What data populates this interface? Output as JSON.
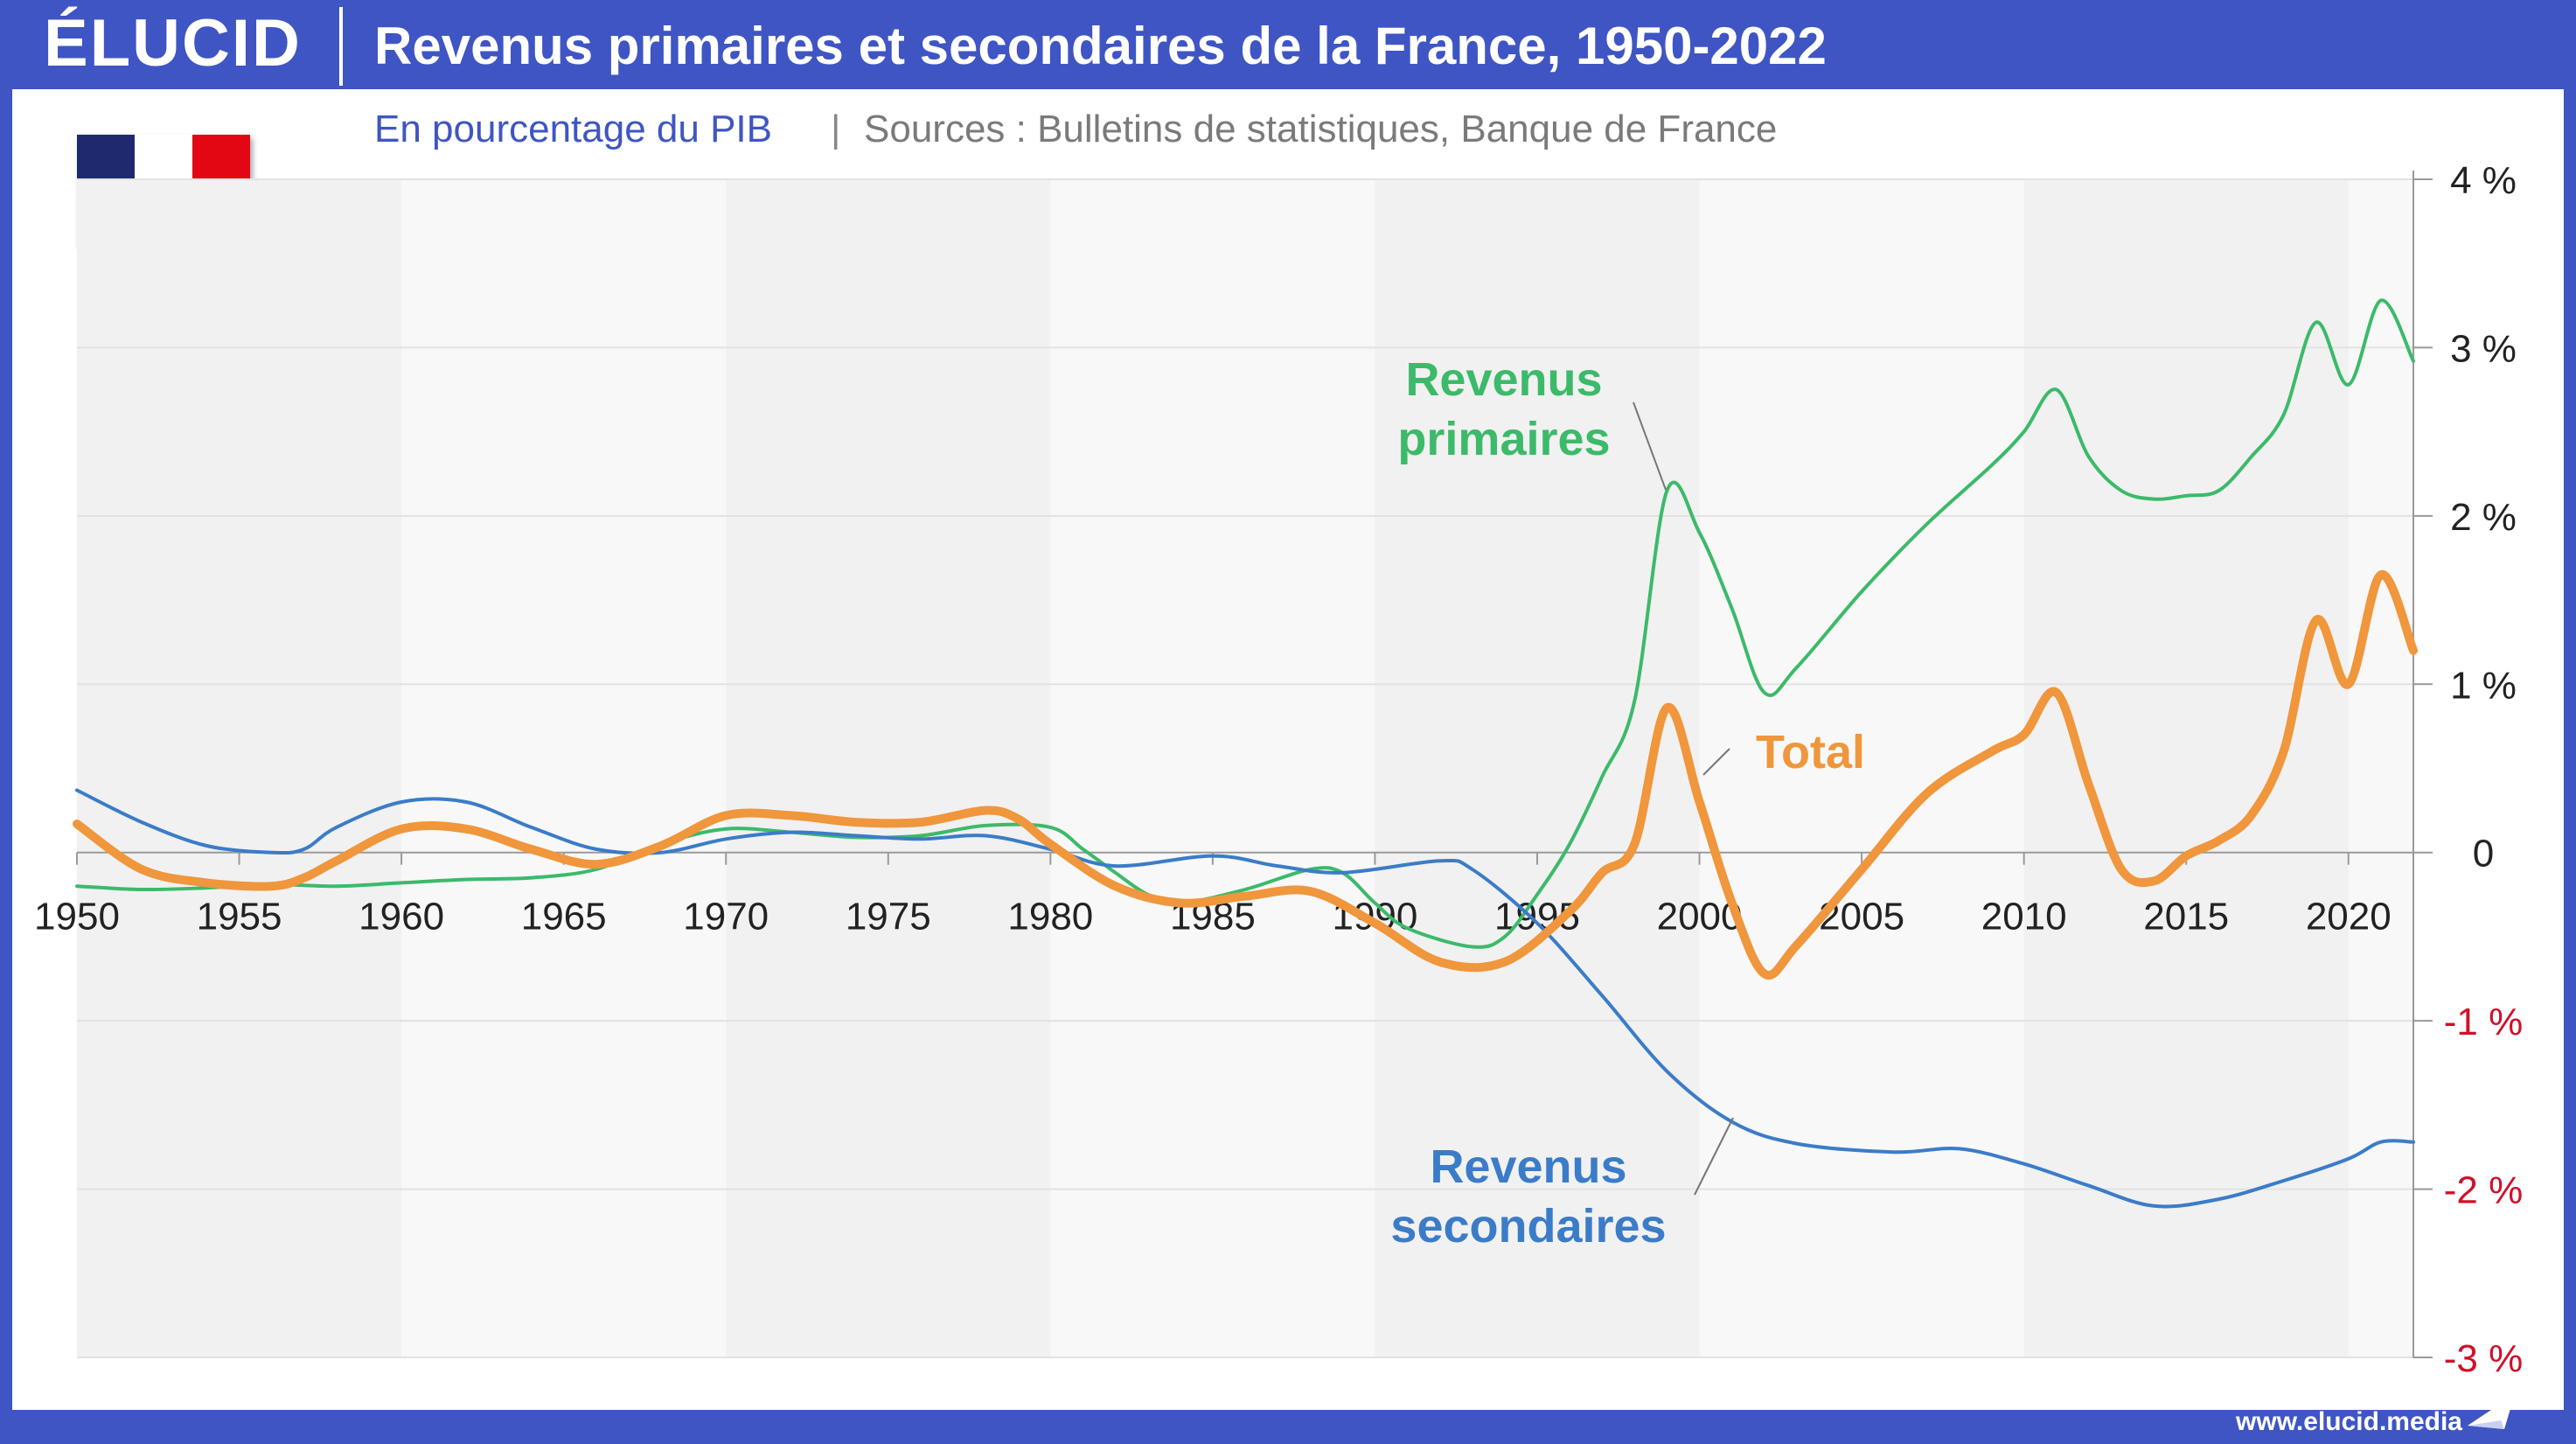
{
  "brand": {
    "logo": "ÉLUCID",
    "url": "www.elucid.media"
  },
  "colors": {
    "frame": "#3f55c4",
    "primary": "#3cba6a",
    "secondary": "#3b7cc8",
    "total": "#f0963c",
    "negative": "#d0102a"
  },
  "flag": {
    "colors": [
      "#1f2a6e",
      "#ffffff",
      "#e30613"
    ]
  },
  "chart_data": {
    "type": "line",
    "title": "Revenus primaires et secondaires de la France, 1950-2022",
    "subtitle": "En pourcentage du PIB",
    "sources_sep": "|",
    "sources": "Sources : Bulletins de statistiques, Banque de France",
    "xlabel": "",
    "ylabel": "",
    "xlim": [
      1950,
      2022
    ],
    "ylim": [
      -3,
      4
    ],
    "x_ticks": [
      1950,
      1955,
      1960,
      1965,
      1970,
      1975,
      1980,
      1985,
      1990,
      1995,
      2000,
      2005,
      2010,
      2015,
      2020
    ],
    "y_ticks": [
      {
        "value": 4,
        "label": "4 %"
      },
      {
        "value": 3,
        "label": "3 %"
      },
      {
        "value": 2,
        "label": "2 %"
      },
      {
        "value": 1,
        "label": "1 %"
      },
      {
        "value": 0,
        "label": "0"
      },
      {
        "value": -1,
        "label": "-1 %"
      },
      {
        "value": -2,
        "label": "-2 %"
      },
      {
        "value": -3,
        "label": "-3 %"
      }
    ],
    "y_axis_position": "right",
    "grid": true,
    "series": [
      {
        "name": "Revenus primaires",
        "label_lines": [
          "Revenus",
          "primaires"
        ],
        "color": "#3cba6a",
        "points": [
          [
            1950,
            -0.2
          ],
          [
            1952,
            -0.22
          ],
          [
            1954,
            -0.21
          ],
          [
            1956,
            -0.19
          ],
          [
            1958,
            -0.2
          ],
          [
            1960,
            -0.18
          ],
          [
            1962,
            -0.16
          ],
          [
            1964,
            -0.15
          ],
          [
            1966,
            -0.1
          ],
          [
            1968,
            0.05
          ],
          [
            1970,
            0.14
          ],
          [
            1972,
            0.12
          ],
          [
            1974,
            0.09
          ],
          [
            1976,
            0.1
          ],
          [
            1978,
            0.16
          ],
          [
            1980,
            0.15
          ],
          [
            1981,
            0.02
          ],
          [
            1982,
            -0.12
          ],
          [
            1983,
            -0.25
          ],
          [
            1984,
            -0.3
          ],
          [
            1986,
            -0.22
          ],
          [
            1988,
            -0.1
          ],
          [
            1989,
            -0.12
          ],
          [
            1990,
            -0.3
          ],
          [
            1991,
            -0.45
          ],
          [
            1993,
            -0.56
          ],
          [
            1994,
            -0.5
          ],
          [
            1995,
            -0.25
          ],
          [
            1996,
            0.05
          ],
          [
            1997,
            0.45
          ],
          [
            1998,
            0.9
          ],
          [
            1999,
            2.15
          ],
          [
            2000,
            1.9
          ],
          [
            2001,
            1.45
          ],
          [
            2002,
            0.95
          ],
          [
            2003,
            1.1
          ],
          [
            2005,
            1.55
          ],
          [
            2007,
            1.95
          ],
          [
            2009,
            2.3
          ],
          [
            2010,
            2.5
          ],
          [
            2011,
            2.75
          ],
          [
            2012,
            2.35
          ],
          [
            2013,
            2.15
          ],
          [
            2014,
            2.1
          ],
          [
            2015,
            2.12
          ],
          [
            2016,
            2.15
          ],
          [
            2017,
            2.35
          ],
          [
            2018,
            2.6
          ],
          [
            2019,
            3.15
          ],
          [
            2020,
            2.78
          ],
          [
            2021,
            3.28
          ],
          [
            2022,
            2.92
          ]
        ]
      },
      {
        "name": "Revenus secondaires",
        "label_lines": [
          "Revenus",
          "secondaires"
        ],
        "color": "#3b7cc8",
        "points": [
          [
            1950,
            0.37
          ],
          [
            1952,
            0.18
          ],
          [
            1954,
            0.04
          ],
          [
            1956,
            0.0
          ],
          [
            1957,
            0.02
          ],
          [
            1958,
            0.15
          ],
          [
            1960,
            0.3
          ],
          [
            1962,
            0.3
          ],
          [
            1964,
            0.15
          ],
          [
            1966,
            0.02
          ],
          [
            1968,
            0.0
          ],
          [
            1970,
            0.08
          ],
          [
            1972,
            0.12
          ],
          [
            1974,
            0.1
          ],
          [
            1976,
            0.08
          ],
          [
            1978,
            0.1
          ],
          [
            1980,
            0.02
          ],
          [
            1982,
            -0.08
          ],
          [
            1985,
            -0.02
          ],
          [
            1987,
            -0.08
          ],
          [
            1989,
            -0.12
          ],
          [
            1992,
            -0.05
          ],
          [
            1993,
            -0.1
          ],
          [
            1995,
            -0.42
          ],
          [
            1997,
            -0.85
          ],
          [
            1999,
            -1.3
          ],
          [
            2001,
            -1.6
          ],
          [
            2003,
            -1.73
          ],
          [
            2006,
            -1.78
          ],
          [
            2008,
            -1.76
          ],
          [
            2010,
            -1.85
          ],
          [
            2012,
            -1.98
          ],
          [
            2014,
            -2.1
          ],
          [
            2016,
            -2.06
          ],
          [
            2018,
            -1.95
          ],
          [
            2020,
            -1.82
          ],
          [
            2021,
            -1.72
          ],
          [
            2022,
            -1.72
          ]
        ]
      },
      {
        "name": "Total",
        "label_lines": [
          "Total"
        ],
        "color": "#f0963c",
        "points": [
          [
            1950,
            0.17
          ],
          [
            1952,
            -0.1
          ],
          [
            1954,
            -0.18
          ],
          [
            1956,
            -0.2
          ],
          [
            1957,
            -0.15
          ],
          [
            1958,
            -0.05
          ],
          [
            1960,
            0.14
          ],
          [
            1962,
            0.14
          ],
          [
            1964,
            0.02
          ],
          [
            1966,
            -0.07
          ],
          [
            1968,
            0.04
          ],
          [
            1970,
            0.22
          ],
          [
            1972,
            0.22
          ],
          [
            1974,
            0.18
          ],
          [
            1976,
            0.18
          ],
          [
            1978,
            0.25
          ],
          [
            1979,
            0.2
          ],
          [
            1980,
            0.05
          ],
          [
            1982,
            -0.2
          ],
          [
            1984,
            -0.3
          ],
          [
            1986,
            -0.26
          ],
          [
            1988,
            -0.23
          ],
          [
            1990,
            -0.42
          ],
          [
            1992,
            -0.65
          ],
          [
            1994,
            -0.65
          ],
          [
            1996,
            -0.35
          ],
          [
            1997,
            -0.12
          ],
          [
            1998,
            0.05
          ],
          [
            1999,
            0.86
          ],
          [
            2000,
            0.3
          ],
          [
            2001,
            -0.3
          ],
          [
            2002,
            -0.72
          ],
          [
            2003,
            -0.55
          ],
          [
            2005,
            -0.1
          ],
          [
            2007,
            0.35
          ],
          [
            2009,
            0.6
          ],
          [
            2010,
            0.7
          ],
          [
            2011,
            0.95
          ],
          [
            2012,
            0.4
          ],
          [
            2013,
            -0.1
          ],
          [
            2014,
            -0.17
          ],
          [
            2015,
            -0.02
          ],
          [
            2016,
            0.07
          ],
          [
            2017,
            0.22
          ],
          [
            2018,
            0.6
          ],
          [
            2019,
            1.38
          ],
          [
            2020,
            1.0
          ],
          [
            2021,
            1.65
          ],
          [
            2022,
            1.2
          ]
        ]
      }
    ]
  }
}
